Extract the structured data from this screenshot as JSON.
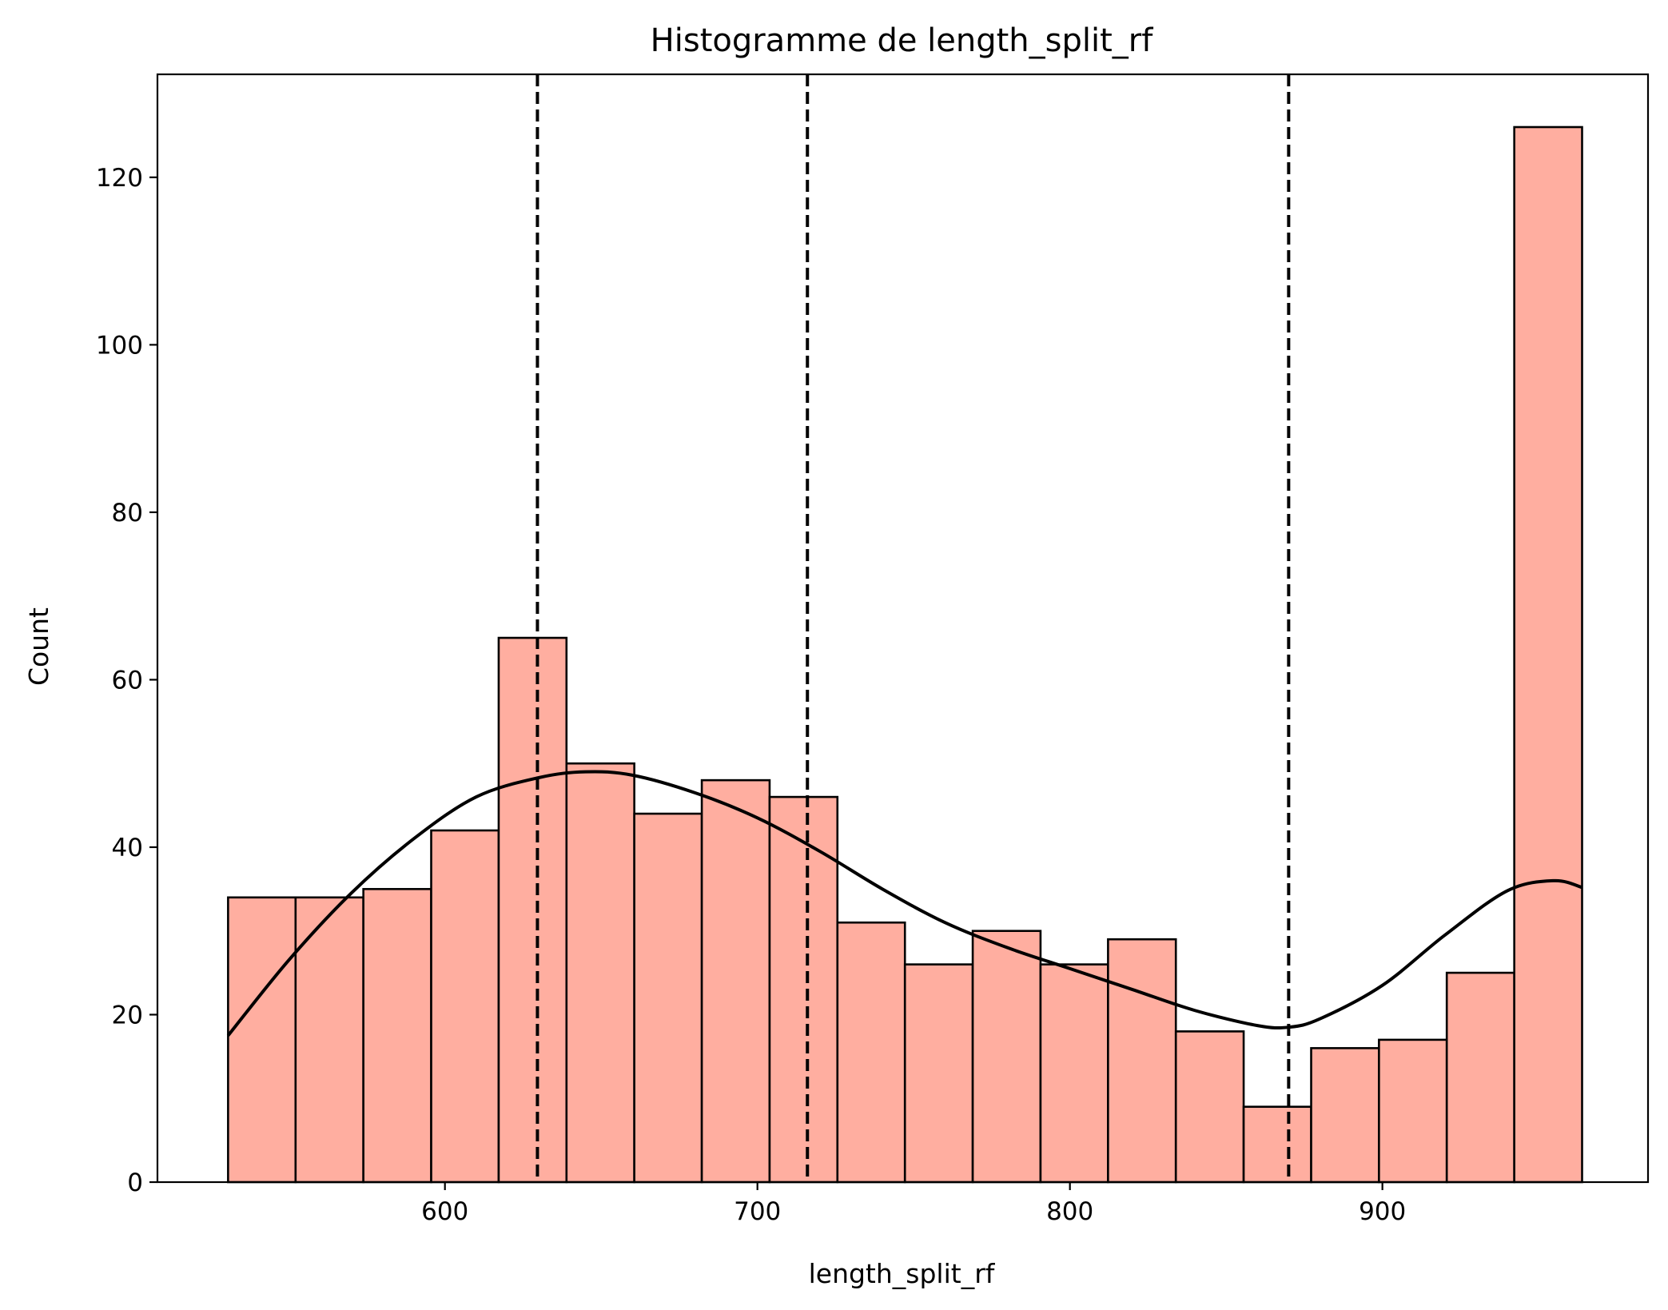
{
  "chart_data": {
    "type": "bar",
    "title": "Histogramme de length_split_rf",
    "xlabel": "length_split_rf",
    "ylabel": "Count",
    "xlim": [
      508,
      985
    ],
    "ylim": [
      0,
      132.3
    ],
    "xticks": [
      600,
      700,
      800,
      900
    ],
    "yticks": [
      0,
      20,
      40,
      60,
      80,
      100,
      120
    ],
    "bin_edges": [
      530.6,
      552.2,
      573.9,
      595.6,
      617.2,
      638.9,
      660.6,
      682.2,
      703.9,
      725.6,
      747.2,
      768.9,
      790.6,
      812.2,
      833.9,
      855.6,
      877.2,
      898.9,
      920.6,
      942.2,
      963.9
    ],
    "values": [
      34,
      34,
      35,
      42,
      65,
      50,
      44,
      48,
      46,
      31,
      26,
      30,
      26,
      29,
      18,
      9,
      16,
      17,
      25,
      126
    ],
    "bar_color": "#ffaea0",
    "edge_color": "#000000",
    "kde": {
      "x": [
        530.6,
        550,
        570,
        590,
        610,
        630,
        645,
        660,
        680,
        700,
        720,
        740,
        760,
        780,
        800,
        820,
        840,
        860,
        870,
        880,
        900,
        920,
        940,
        955,
        963.9
      ],
      "y": [
        17.5,
        26.5,
        34.5,
        41,
        46,
        48.3,
        49,
        48.6,
        46.5,
        43.5,
        39.5,
        35,
        31,
        28,
        25.5,
        23,
        20.5,
        18.7,
        18.5,
        19.5,
        23.5,
        29.5,
        34.8,
        36,
        35.2
      ]
    },
    "vlines": [
      629.6,
      716.0,
      870.0
    ],
    "vline_style": "dashed",
    "grid": false,
    "legend": "none"
  }
}
